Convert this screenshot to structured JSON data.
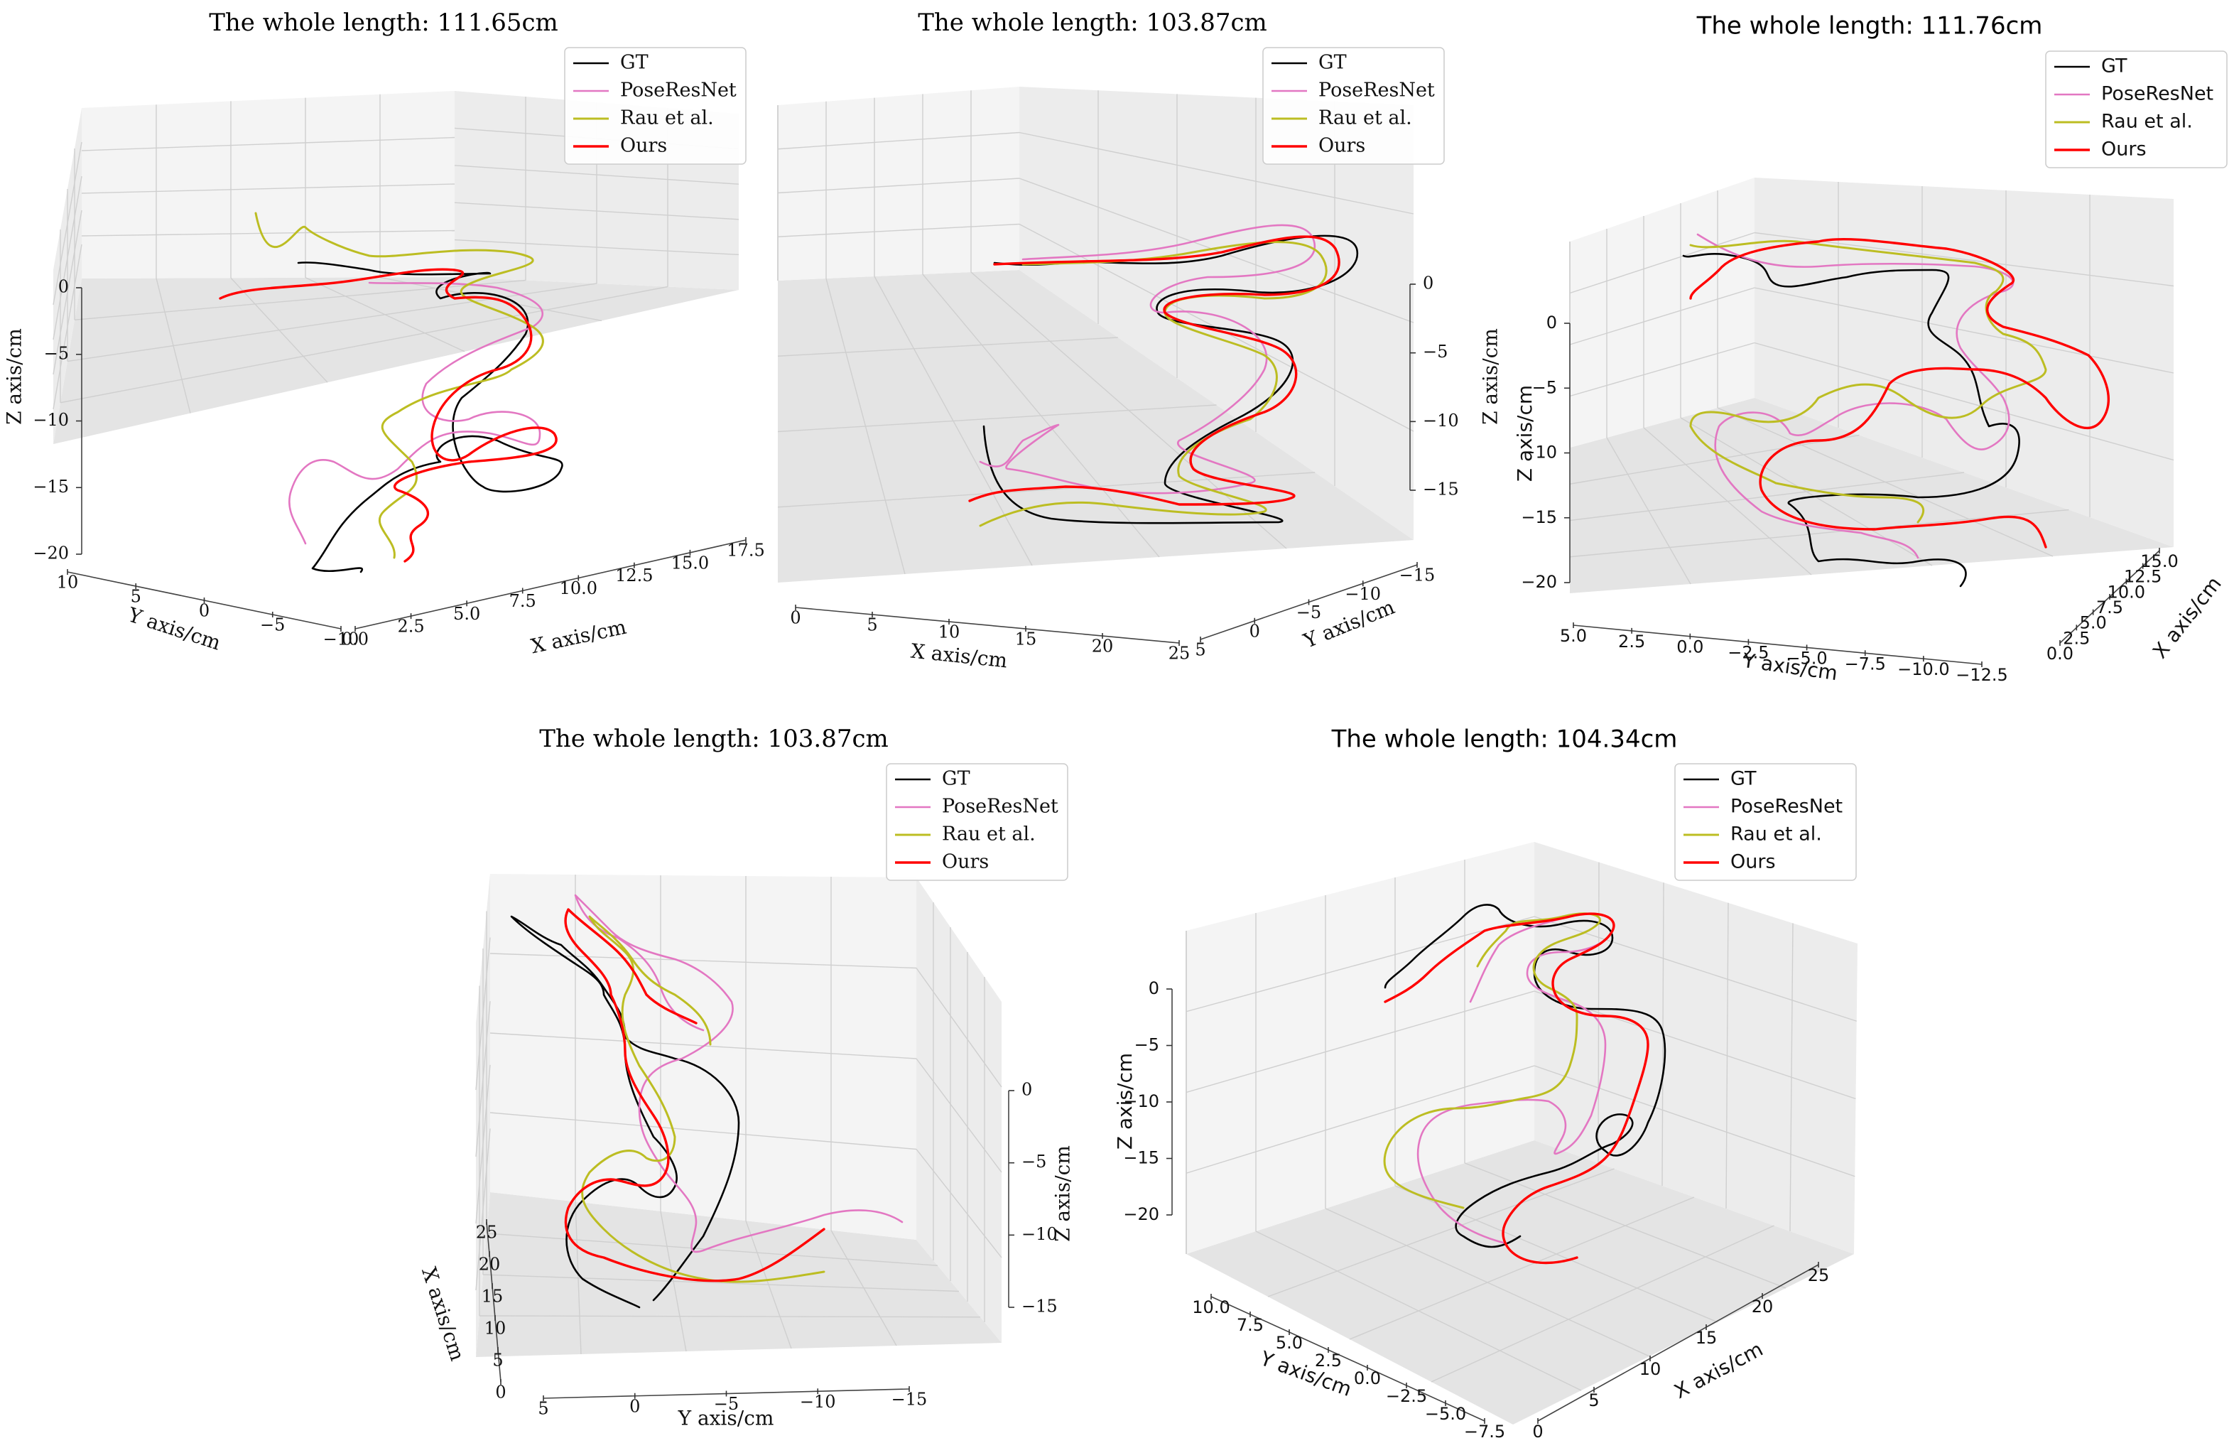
{
  "colors": {
    "gt": "#000000",
    "poseresnet": "#e377c2",
    "rau": "#bcbd22",
    "ours": "#ff0000",
    "pane_light": "#f4f4f4",
    "pane_mid": "#ececec",
    "pane_dark": "#e4e4e4"
  },
  "chart_data": [
    {
      "type": "line3d",
      "title": "The whole length: 111.65cm",
      "legend_position": "top-right",
      "legend": [
        "GT",
        "PoseResNet",
        "Rau et al.",
        "Ours"
      ],
      "xlabel": "X axis/cm",
      "ylabel": "Y axis/cm",
      "zlabel": "Z axis/cm",
      "xticks": [
        "0.0",
        "2.5",
        "5.0",
        "7.5",
        "10.0",
        "12.5",
        "15.0",
        "17.5"
      ],
      "yticks": [
        "10",
        "5",
        "0",
        "−5",
        "−10"
      ],
      "zticks": [
        "0",
        "−5",
        "−10",
        "−15",
        "−20"
      ],
      "xlim": [
        0,
        17.5
      ],
      "ylim": [
        10,
        -10
      ],
      "zlim": [
        -20,
        0
      ]
    },
    {
      "type": "line3d",
      "title": "The whole length: 103.87cm",
      "legend_position": "top-right",
      "legend": [
        "GT",
        "PoseResNet",
        "Rau et al.",
        "Ours"
      ],
      "xlabel": "X axis/cm",
      "ylabel": "Y axis/cm",
      "zlabel": "Z axis/cm",
      "xticks": [
        "0",
        "5",
        "10",
        "15",
        "20",
        "25"
      ],
      "yticks": [
        "5",
        "0",
        "−5",
        "−10",
        "−15"
      ],
      "zticks": [
        "0",
        "−5",
        "−10",
        "−15"
      ],
      "xlim": [
        0,
        25
      ],
      "ylim": [
        5,
        -15
      ],
      "zlim": [
        -15,
        0
      ]
    },
    {
      "type": "line3d",
      "title": "The whole length: 111.76cm",
      "legend_position": "top-right",
      "legend": [
        "GT",
        "PoseResNet",
        "Rau et al.",
        "Ours"
      ],
      "xlabel": "X axis/cm",
      "ylabel": "Y axis/cm",
      "zlabel": "Z axis/cm",
      "xticks": [
        "0.0",
        "2.5",
        "5.0",
        "7.5",
        "10.0",
        "12.5",
        "15.0"
      ],
      "yticks": [
        "5.0",
        "2.5",
        "0.0",
        "−2.5",
        "−5.0",
        "−7.5",
        "−10.0",
        "−12.5"
      ],
      "zticks": [
        "0",
        "−5",
        "−10",
        "−15",
        "−20"
      ],
      "xlim": [
        0,
        15
      ],
      "ylim": [
        5,
        -12.5
      ],
      "zlim": [
        -20,
        0
      ]
    },
    {
      "type": "line3d",
      "title": "The whole length: 103.87cm",
      "legend_position": "top-right",
      "legend": [
        "GT",
        "PoseResNet",
        "Rau et al.",
        "Ours"
      ],
      "xlabel": "X axis/cm",
      "ylabel": "Y axis/cm",
      "zlabel": "Z axis/cm",
      "xticks": [
        "25",
        "20",
        "15",
        "10",
        "5",
        "0"
      ],
      "yticks": [
        "5",
        "0",
        "−5",
        "−10",
        "−15"
      ],
      "zticks": [
        "0",
        "−5",
        "−10",
        "−15"
      ],
      "xlim": [
        0,
        25
      ],
      "ylim": [
        5,
        -15
      ],
      "zlim": [
        -15,
        0
      ]
    },
    {
      "type": "line3d",
      "title": "The whole length: 104.34cm",
      "legend_position": "top-right",
      "legend": [
        "GT",
        "PoseResNet",
        "Rau et al.",
        "Ours"
      ],
      "xlabel": "X axis/cm",
      "ylabel": "Y axis/cm",
      "zlabel": "Z axis/cm",
      "xticks": [
        "0",
        "5",
        "10",
        "15",
        "20",
        "25"
      ],
      "yticks": [
        "10.0",
        "7.5",
        "5.0",
        "2.5",
        "0.0",
        "−2.5",
        "−5.0",
        "−7.5"
      ],
      "zticks": [
        "0",
        "−5",
        "−10",
        "−15",
        "−20"
      ],
      "xlim": [
        0,
        27
      ],
      "ylim": [
        10,
        -7.5
      ],
      "zlim": [
        -20,
        0
      ]
    }
  ]
}
